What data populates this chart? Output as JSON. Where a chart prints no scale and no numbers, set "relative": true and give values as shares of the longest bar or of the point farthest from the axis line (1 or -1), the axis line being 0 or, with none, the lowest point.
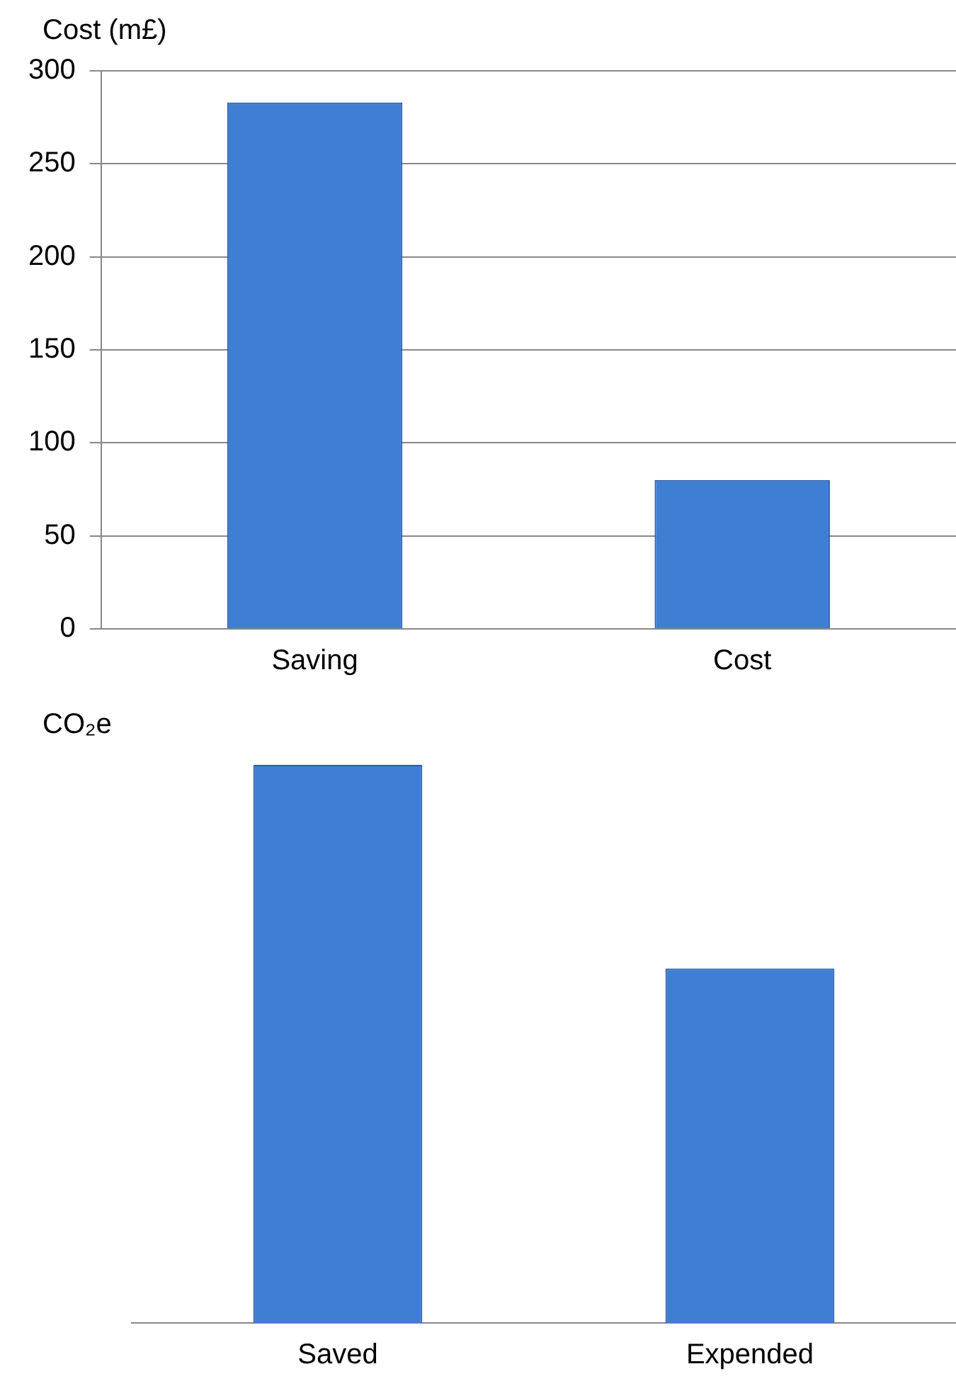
{
  "chart_data": [
    {
      "type": "bar",
      "ylabel": "Cost (m£)",
      "categories": [
        "Saving",
        "Cost"
      ],
      "values": [
        283,
        80
      ],
      "color": "#3f7fd3",
      "ylim": [
        0,
        300
      ],
      "yticks": [
        0,
        50,
        100,
        150,
        200,
        250,
        300
      ],
      "grid": "y",
      "legend": false
    },
    {
      "type": "bar",
      "ylabel": "CO₂e",
      "categories": [
        "Saved",
        "Expended"
      ],
      "values": [
        1,
        0.635
      ],
      "color": "#3f7fd3",
      "relative": true,
      "legend": false
    }
  ]
}
